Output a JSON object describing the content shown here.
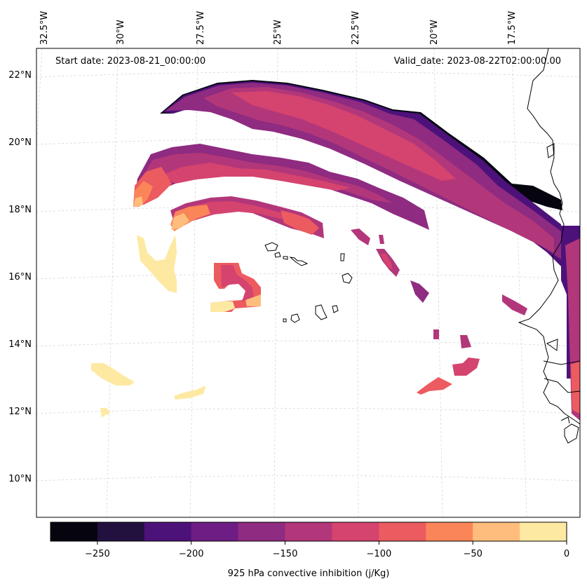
{
  "header": {
    "start_date": "Start date: 2023-08-21_00:00:00",
    "valid_date": "Valid_date: 2023-08-22T02:00:00.00"
  },
  "map": {
    "lon_labels": [
      "32.5°W",
      "30°W",
      "27.5°W",
      "25°W",
      "22.5°W",
      "20°W",
      "17.5°W"
    ],
    "lat_labels": [
      "22°N",
      "20°N",
      "18°N",
      "16°N",
      "14°N",
      "12°N",
      "10°N"
    ],
    "field": "925 hPa convective inhibition",
    "units": "j/Kg",
    "colors": {
      "c_250_275": "#05040f",
      "c_225_250": "#22113f",
      "c_200_225": "#4d127a",
      "c_175_200": "#6e1d84",
      "c_150_175": "#8f2b81",
      "c_125_150": "#b2377a",
      "c_100_125": "#d5436f",
      "c_75_100": "#ec5b5f",
      "c_50_75": "#fa8559",
      "c_25_50": "#febd7c",
      "c_0_25": "#fee9a2"
    }
  },
  "colorbar": {
    "label": "925 hPa convective inhibition (j/Kg)",
    "tick_labels": [
      "−250",
      "−200",
      "−150",
      "−100",
      "−50",
      "0"
    ],
    "range": [
      -275,
      0
    ],
    "levels": [
      -275,
      -250,
      -225,
      -200,
      -175,
      -150,
      -125,
      -100,
      -75,
      -50,
      -25,
      0
    ],
    "colors": [
      "#05040f",
      "#22113f",
      "#4d127a",
      "#6e1d84",
      "#8f2b81",
      "#b2377a",
      "#d5436f",
      "#ec5b5f",
      "#fa8559",
      "#febd7c",
      "#fee9a2"
    ]
  }
}
